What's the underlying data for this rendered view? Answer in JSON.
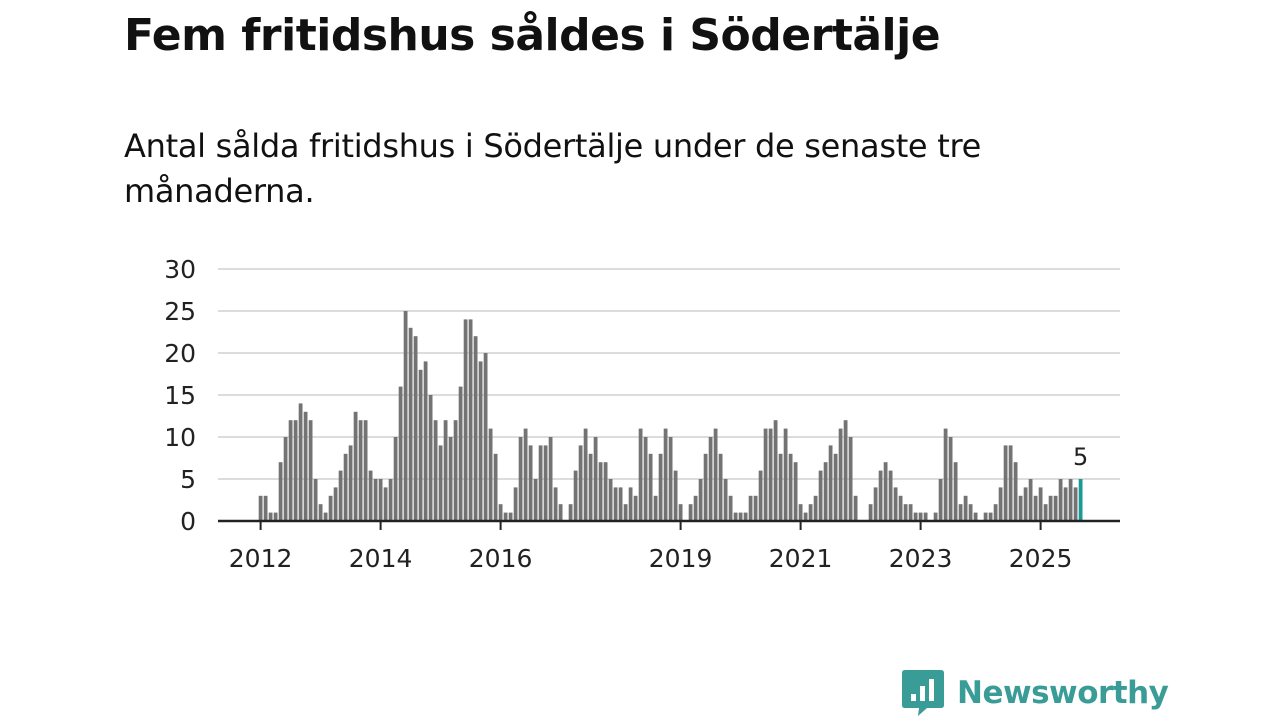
{
  "title": "Fem fritidshus såldes i Södertälje",
  "subtitle": "Antal sålda fritidshus i Södertälje under de senaste tre månaderna.",
  "brand": {
    "name": "Newsworthy",
    "icon": "newsworthy-logo-icon"
  },
  "colors": {
    "bar": "#737373",
    "highlight": "#1a9a94",
    "grid": "#dcdcdc",
    "axis": "#222222",
    "brand": "#3a9c97"
  },
  "chart_data": {
    "type": "bar",
    "title": "Fem fritidshus såldes i Södertälje",
    "subtitle": "Antal sålda fritidshus i Södertälje under de senaste tre månaderna.",
    "xlabel": "",
    "ylabel": "",
    "ylim": [
      0,
      30
    ],
    "yticks": [
      0,
      5,
      10,
      15,
      20,
      25,
      30
    ],
    "grid": true,
    "start": "2012-01",
    "frequency": "monthly",
    "xtick_labels": [
      {
        "label": "2012",
        "index": 0
      },
      {
        "label": "2014",
        "index": 24
      },
      {
        "label": "2016",
        "index": 48
      },
      {
        "label": "2019",
        "index": 84
      },
      {
        "label": "2021",
        "index": 108
      },
      {
        "label": "2023",
        "index": 132
      },
      {
        "label": "2025",
        "index": 156
      }
    ],
    "values": [
      3,
      3,
      1,
      1,
      7,
      10,
      12,
      12,
      14,
      13,
      12,
      5,
      2,
      1,
      3,
      4,
      6,
      8,
      9,
      13,
      12,
      12,
      6,
      5,
      5,
      4,
      5,
      10,
      16,
      25,
      23,
      22,
      18,
      19,
      15,
      12,
      9,
      12,
      10,
      12,
      16,
      24,
      24,
      22,
      19,
      20,
      11,
      8,
      2,
      1,
      1,
      4,
      10,
      11,
      9,
      5,
      9,
      9,
      10,
      4,
      2,
      0,
      2,
      6,
      9,
      11,
      8,
      10,
      7,
      7,
      5,
      4,
      4,
      2,
      4,
      3,
      11,
      10,
      8,
      3,
      8,
      11,
      10,
      6,
      2,
      0,
      2,
      3,
      5,
      8,
      10,
      11,
      8,
      5,
      3,
      1,
      1,
      1,
      3,
      3,
      6,
      11,
      11,
      12,
      8,
      11,
      8,
      7,
      2,
      1,
      2,
      3,
      6,
      7,
      9,
      8,
      11,
      12,
      10,
      3,
      0,
      0,
      2,
      4,
      6,
      7,
      6,
      4,
      3,
      2,
      2,
      1,
      1,
      1,
      0,
      1,
      5,
      11,
      10,
      7,
      2,
      3,
      2,
      1,
      0,
      1,
      1,
      2,
      4,
      9,
      9,
      7,
      3,
      4,
      5,
      3,
      4,
      2,
      3,
      3,
      5,
      4,
      5,
      4,
      5
    ],
    "highlight": {
      "index": 164,
      "value": 5,
      "label": "5"
    }
  }
}
